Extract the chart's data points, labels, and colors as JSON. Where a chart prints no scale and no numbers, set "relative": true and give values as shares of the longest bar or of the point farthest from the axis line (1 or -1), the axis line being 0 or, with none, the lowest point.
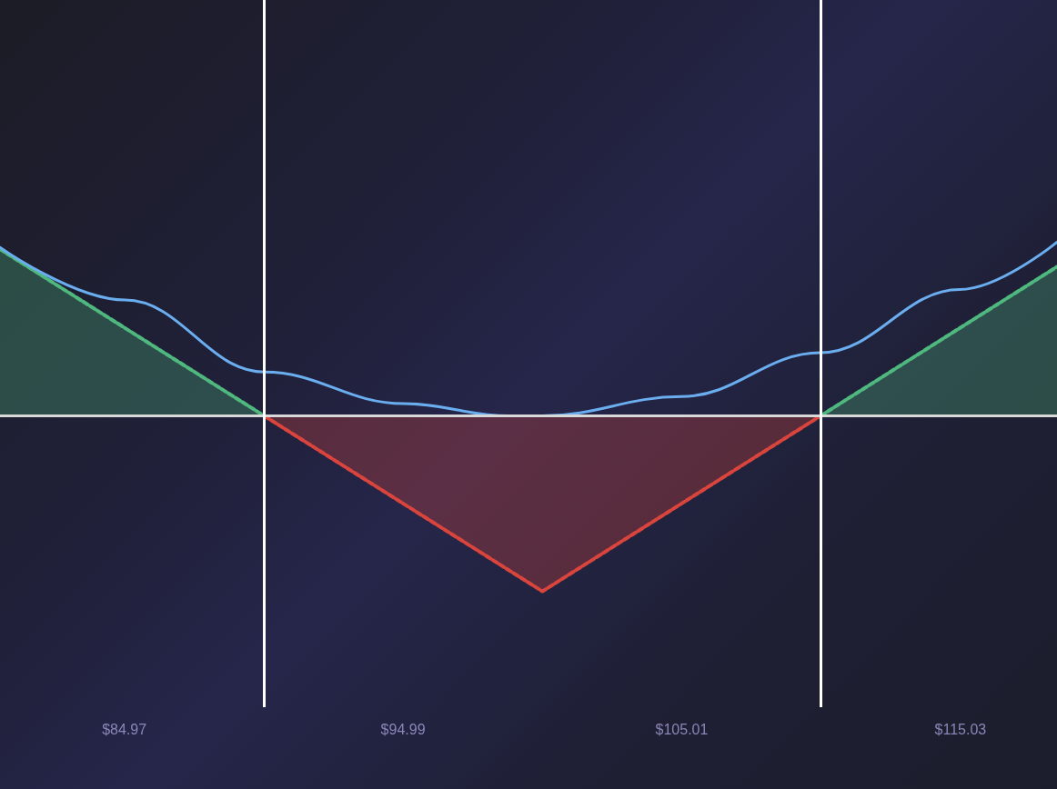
{
  "chart_data": {
    "type": "line",
    "relative": true,
    "xlim": [
      80.5,
      118.5
    ],
    "xticks": [
      {
        "value": 84.97,
        "label": "$84.97"
      },
      {
        "value": 94.99,
        "label": "$94.99"
      },
      {
        "value": 105.01,
        "label": "$105.01"
      },
      {
        "value": 115.03,
        "label": "$115.03"
      }
    ],
    "series": [
      {
        "type": "area",
        "color": "#4fb87e",
        "line_style": "dashed",
        "x": [
          80.5,
          90
        ],
        "values": [
          0.95,
          0
        ]
      },
      {
        "type": "area",
        "color": "#d9453d",
        "line_style": "dashed",
        "x": [
          90,
          100,
          110
        ],
        "values": [
          0,
          -1,
          0
        ]
      },
      {
        "type": "area",
        "color": "#4fb87e",
        "line_style": "dashed",
        "x": [
          110,
          118.5
        ],
        "values": [
          0,
          0.85
        ]
      },
      {
        "color": "#6aaeef",
        "x": [
          80.5,
          85,
          90,
          95,
          98.8,
          100,
          105,
          110,
          115,
          118.5
        ],
        "values": [
          0.96,
          0.66,
          0.25,
          0.07,
          0,
          0,
          0.11,
          0.36,
          0.72,
          0.99
        ]
      }
    ],
    "ref_lines": [
      {
        "axis": "y",
        "value": 0,
        "color": "#d8d8d8"
      },
      {
        "axis": "x",
        "value": 90,
        "color": "#ffffff"
      },
      {
        "axis": "x",
        "value": 110,
        "color": "#ffffff"
      }
    ],
    "grid": false
  }
}
